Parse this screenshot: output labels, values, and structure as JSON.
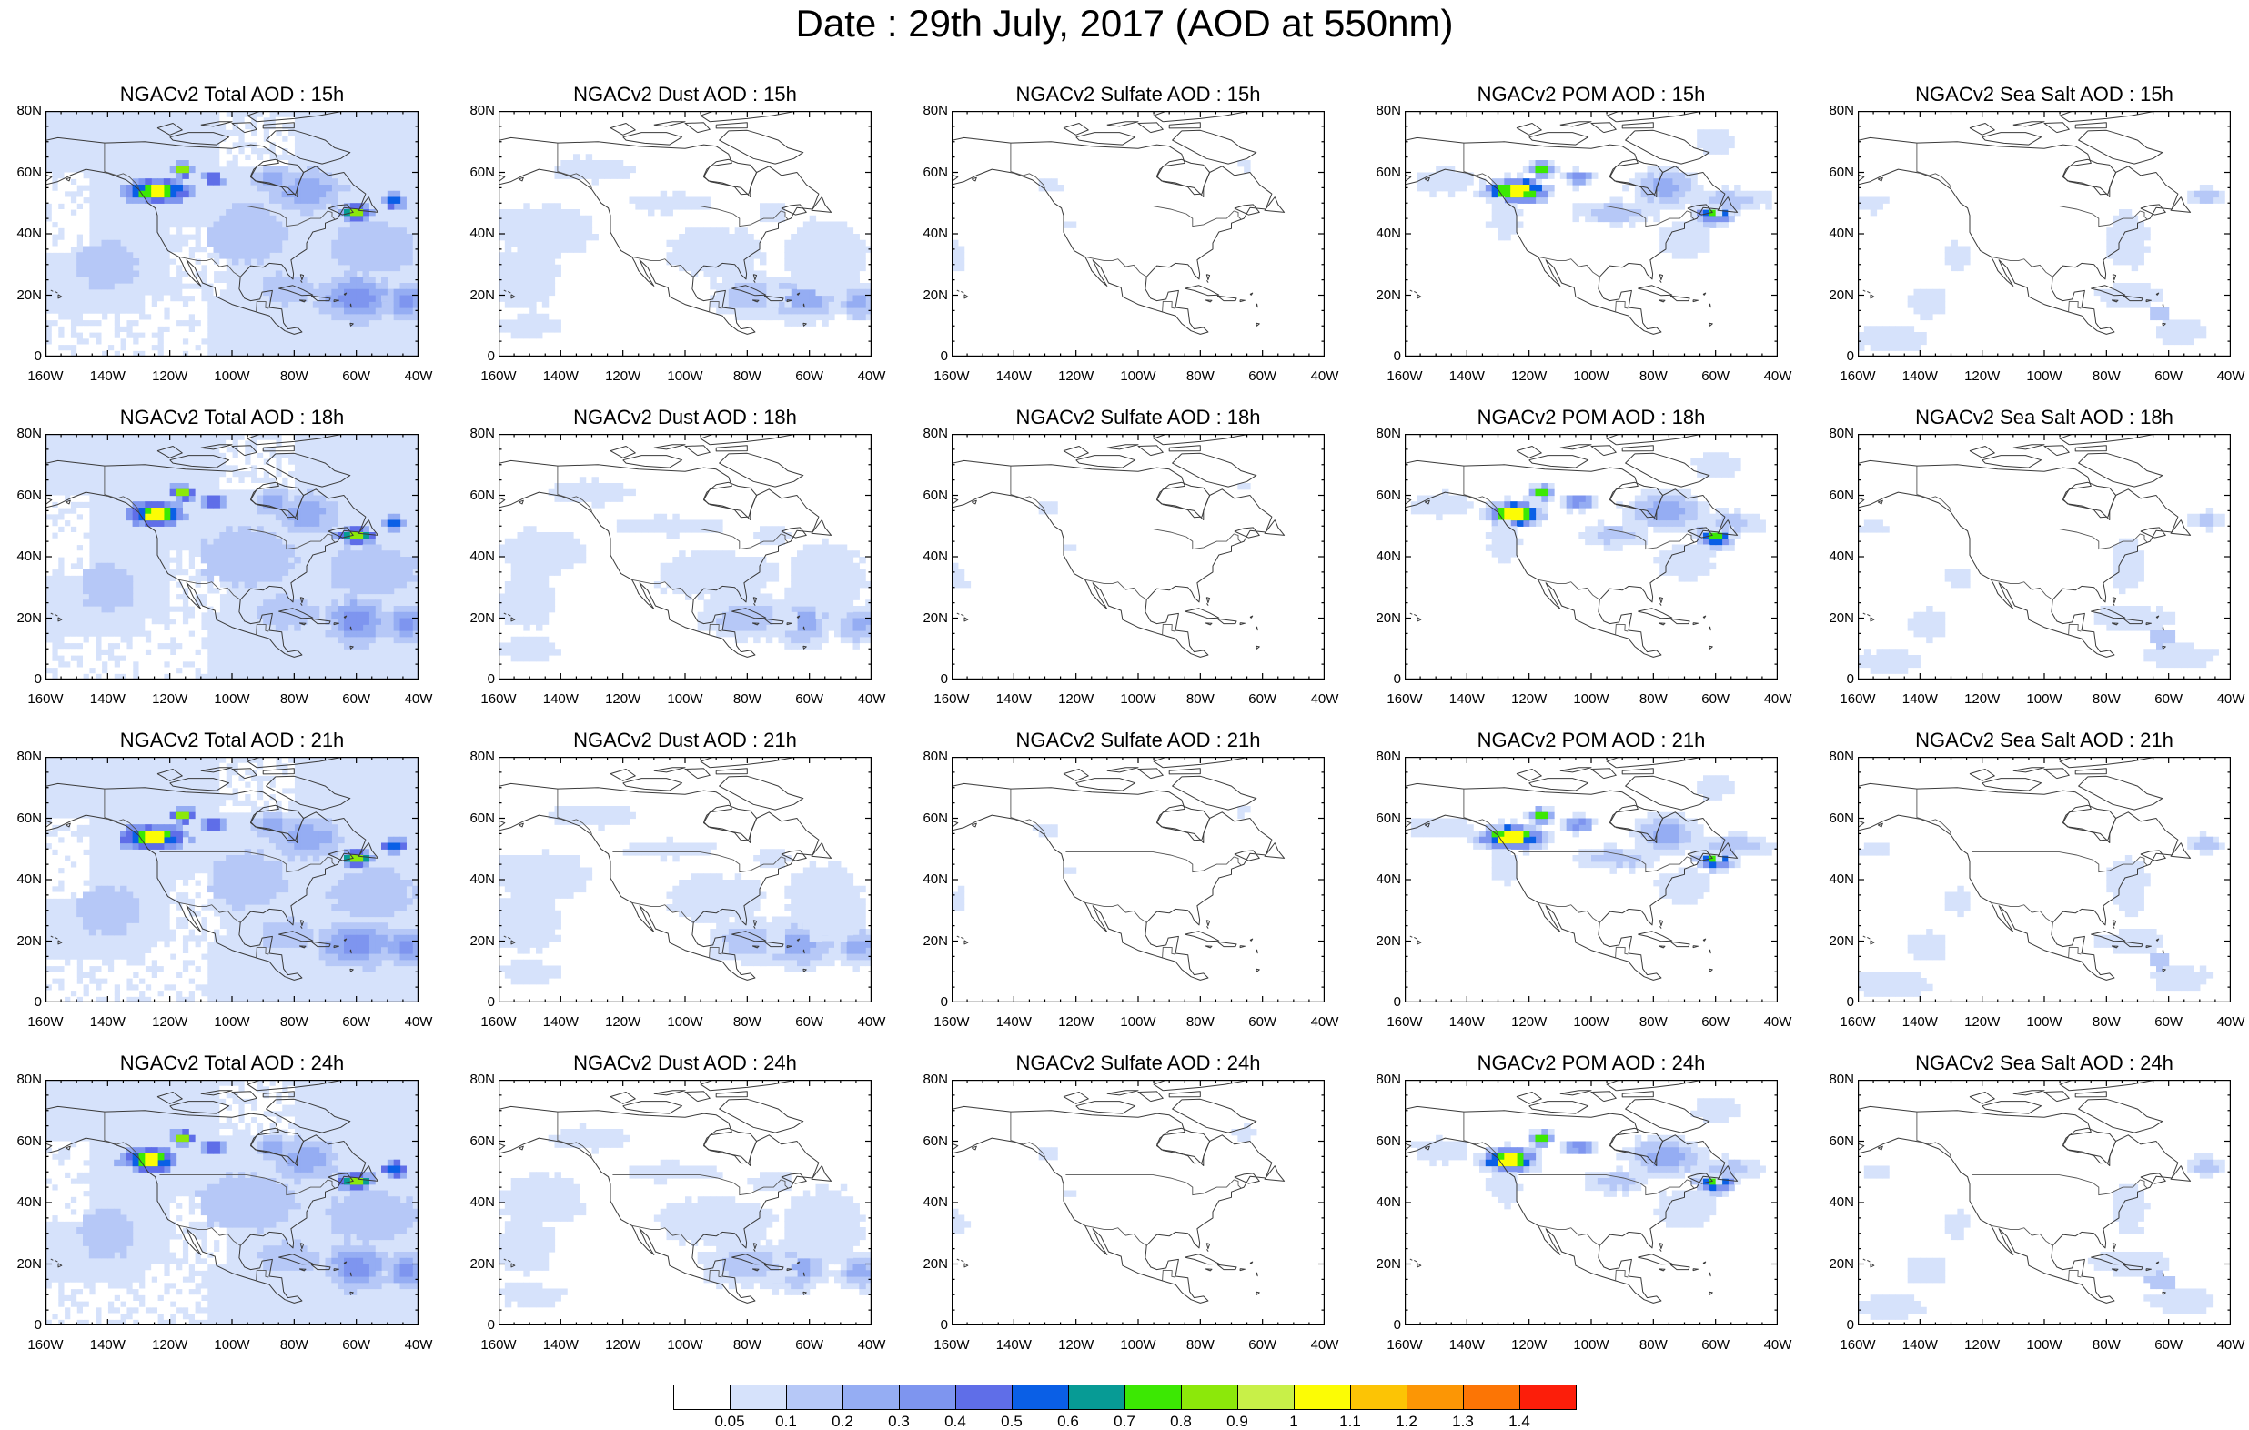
{
  "title": "Date : 29th July, 2017 (AOD at 550nm)",
  "axes": {
    "lat_ticks": [
      "80N",
      "60N",
      "40N",
      "20N",
      "0"
    ],
    "lon_ticks": [
      "160W",
      "140W",
      "120W",
      "100W",
      "80W",
      "60W",
      "40W"
    ],
    "lon_range_deg": [
      -160,
      -40
    ],
    "lat_range_deg": [
      0,
      80
    ]
  },
  "colorbar": {
    "labels": [
      "0.05",
      "0.1",
      "0.2",
      "0.3",
      "0.4",
      "0.5",
      "0.6",
      "0.7",
      "0.8",
      "0.9",
      "1",
      "1.1",
      "1.2",
      "1.3",
      "1.4"
    ],
    "colors": [
      "#ffffff",
      "#d6e2fb",
      "#b6c8f7",
      "#95adf3",
      "#7e95ef",
      "#5f6ee8",
      "#0a5fe6",
      "#079b95",
      "#3ce803",
      "#8ce80a",
      "#c8f048",
      "#fcfc05",
      "#fcc405",
      "#fc9605",
      "#fc7505",
      "#fc1e0a"
    ]
  },
  "panels": [
    {
      "title": "NGACv2 Total AOD : 15h",
      "species": "total",
      "hour": 15
    },
    {
      "title": "NGACv2 Dust AOD : 15h",
      "species": "dust",
      "hour": 15
    },
    {
      "title": "NGACv2 Sulfate AOD : 15h",
      "species": "sulfate",
      "hour": 15
    },
    {
      "title": "NGACv2 POM AOD : 15h",
      "species": "pom",
      "hour": 15
    },
    {
      "title": "NGACv2 Sea Salt AOD : 15h",
      "species": "seasalt",
      "hour": 15
    },
    {
      "title": "NGACv2 Total AOD : 18h",
      "species": "total",
      "hour": 18
    },
    {
      "title": "NGACv2 Dust AOD : 18h",
      "species": "dust",
      "hour": 18
    },
    {
      "title": "NGACv2 Sulfate AOD : 18h",
      "species": "sulfate",
      "hour": 18
    },
    {
      "title": "NGACv2 POM AOD : 18h",
      "species": "pom",
      "hour": 18
    },
    {
      "title": "NGACv2 Sea Salt AOD : 18h",
      "species": "seasalt",
      "hour": 18
    },
    {
      "title": "NGACv2 Total AOD : 21h",
      "species": "total",
      "hour": 21
    },
    {
      "title": "NGACv2 Dust AOD : 21h",
      "species": "dust",
      "hour": 21
    },
    {
      "title": "NGACv2 Sulfate AOD : 21h",
      "species": "sulfate",
      "hour": 21
    },
    {
      "title": "NGACv2 POM AOD : 21h",
      "species": "pom",
      "hour": 21
    },
    {
      "title": "NGACv2 Sea Salt AOD : 21h",
      "species": "seasalt",
      "hour": 21
    },
    {
      "title": "NGACv2 Total AOD : 24h",
      "species": "total",
      "hour": 24
    },
    {
      "title": "NGACv2 Dust AOD : 24h",
      "species": "dust",
      "hour": 24
    },
    {
      "title": "NGACv2 Sulfate AOD : 24h",
      "species": "sulfate",
      "hour": 24
    },
    {
      "title": "NGACv2 POM AOD : 24h",
      "species": "pom",
      "hour": 24
    },
    {
      "title": "NGACv2 Sea Salt  AOD : 24h",
      "species": "seasalt",
      "hour": 24
    }
  ]
}
